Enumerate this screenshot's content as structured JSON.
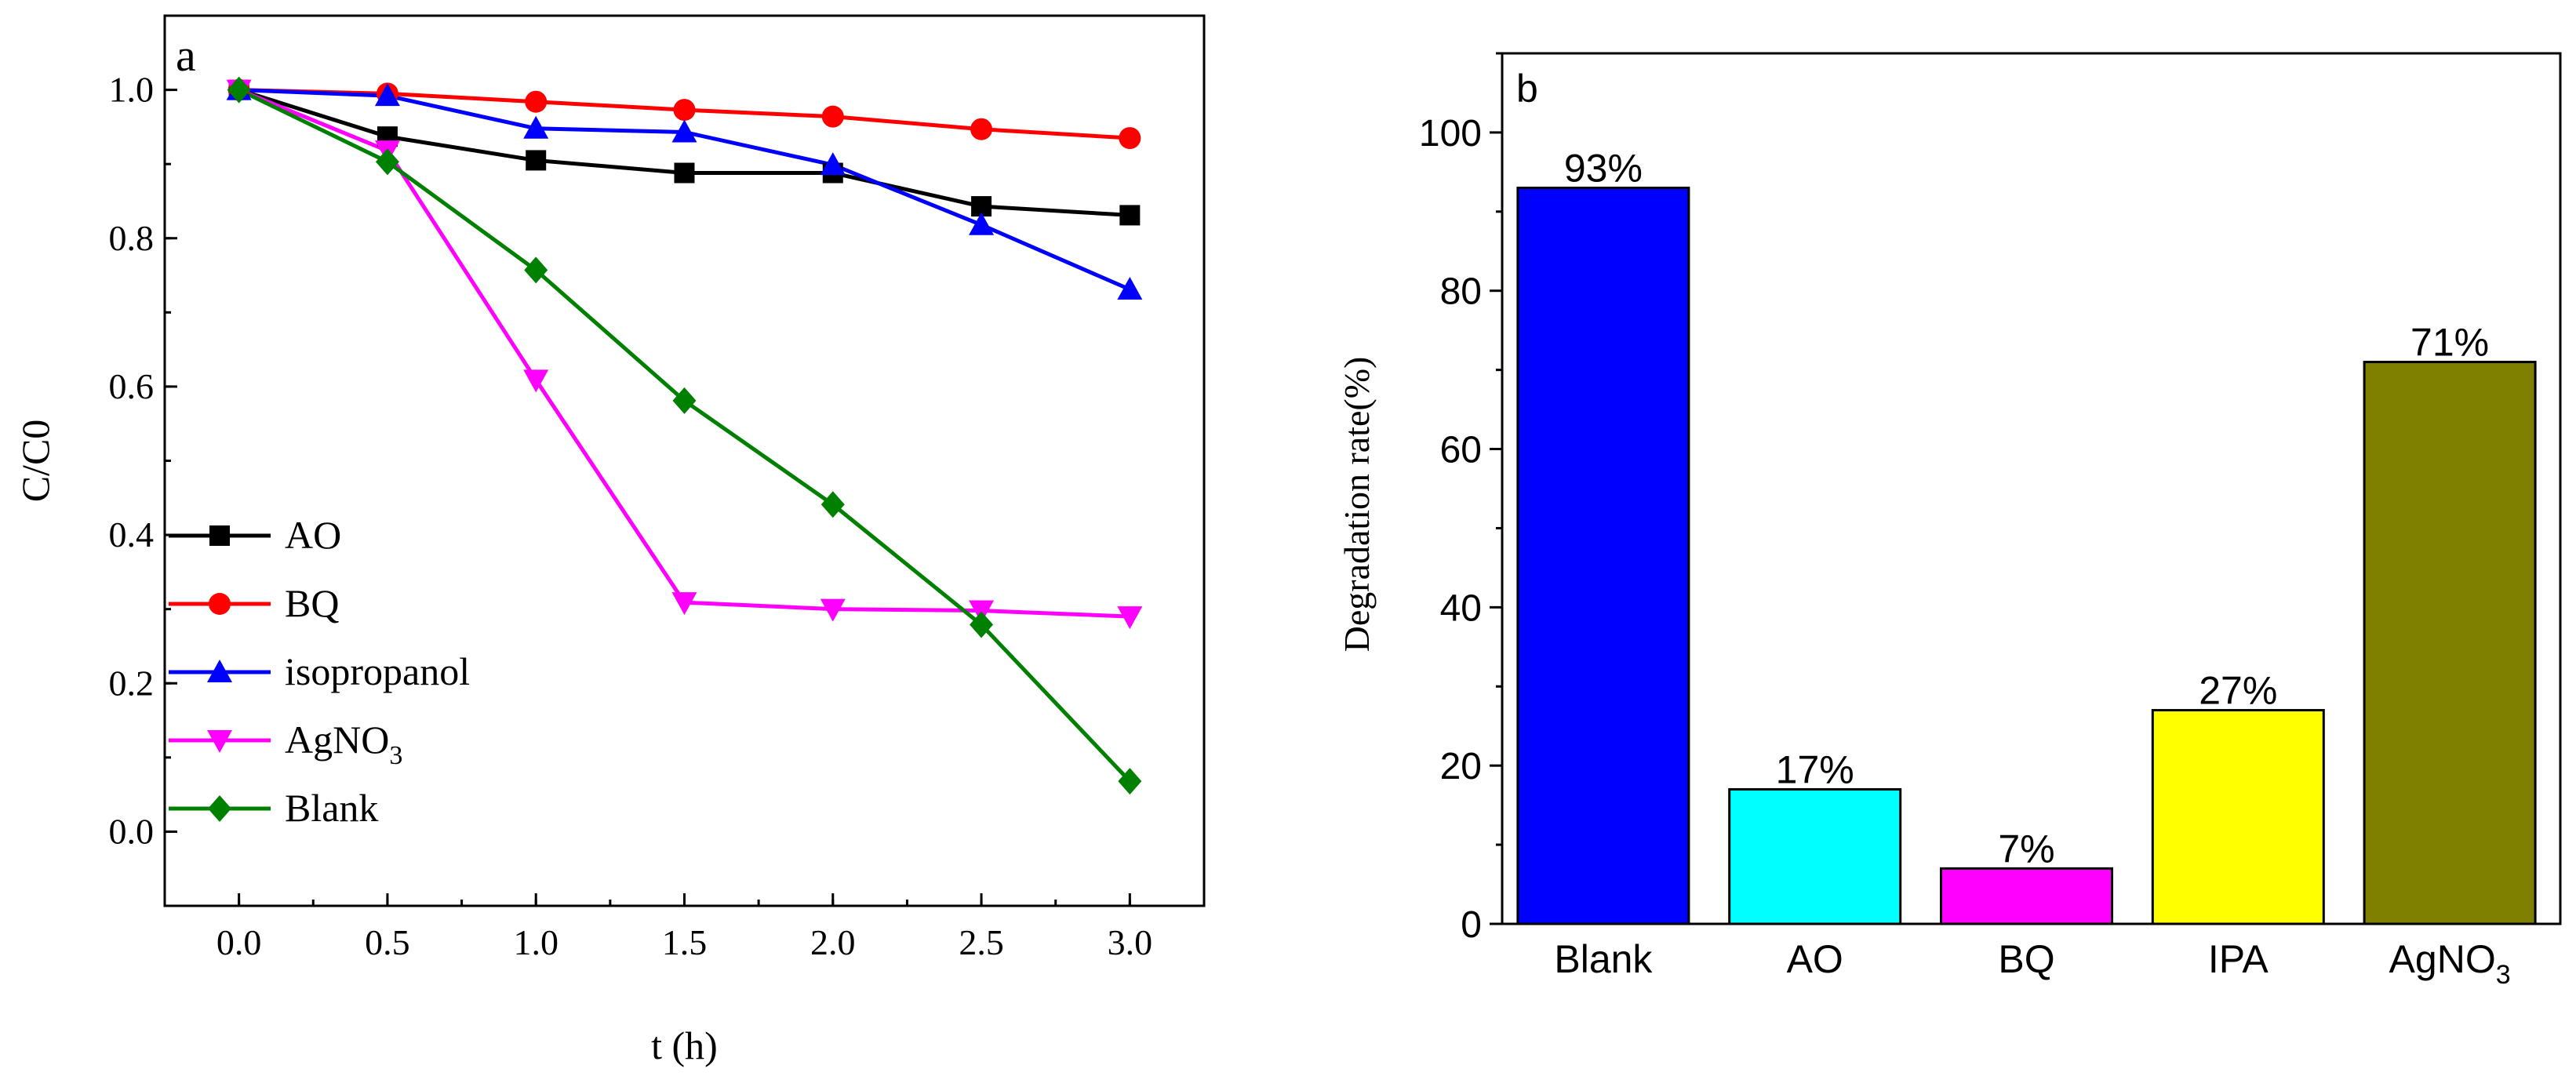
{
  "figure": {
    "panels": [
      {
        "panel_label": "a",
        "chart_data": {
          "type": "line",
          "title": "",
          "xlabel": "t (h)",
          "ylabel": "C/C0",
          "xlim": [
            -0.25,
            3.25
          ],
          "ylim": [
            -0.1,
            1.1
          ],
          "xticks": [
            0.0,
            0.5,
            1.0,
            1.5,
            2.0,
            2.5,
            3.0
          ],
          "xtick_labels": [
            "0.0",
            "0.5",
            "1.0",
            "1.5",
            "2.0",
            "2.5",
            "3.0"
          ],
          "yticks": [
            0.0,
            0.2,
            0.4,
            0.6,
            0.8,
            1.0
          ],
          "ytick_labels": [
            "0.0",
            "0.2",
            "0.4",
            "0.6",
            "0.8",
            "1.0"
          ],
          "grid": false,
          "legend_position": "left-middle",
          "x": [
            0.0,
            0.5,
            1.0,
            1.5,
            2.0,
            2.5,
            3.0
          ],
          "series": [
            {
              "name": "AO",
              "marker": "square",
              "color": "#000000",
              "values": [
                1.0,
                0.937,
                0.905,
                0.888,
                0.888,
                0.843,
                0.831
              ]
            },
            {
              "name": "BQ",
              "marker": "circle",
              "color": "#ff0000",
              "values": [
                1.0,
                0.995,
                0.984,
                0.973,
                0.964,
                0.947,
                0.935
              ]
            },
            {
              "name": "isopropanol",
              "marker": "triangle-up",
              "color": "#0000ff",
              "values": [
                1.0,
                0.992,
                0.948,
                0.943,
                0.899,
                0.818,
                0.731
              ]
            },
            {
              "name": "AgNO",
              "name_sub": "3",
              "marker": "triangle-down",
              "color": "#ff00ff",
              "values": [
                1.0,
                0.918,
                0.609,
                0.309,
                0.3,
                0.298,
                0.29
              ]
            },
            {
              "name": "Blank",
              "marker": "diamond",
              "color": "#008000",
              "values": [
                1.0,
                0.903,
                0.757,
                0.581,
                0.441,
                0.279,
                0.068
              ]
            }
          ]
        }
      },
      {
        "panel_label": "b",
        "chart_data": {
          "type": "bar",
          "title": "",
          "xlabel": "",
          "ylabel": "Degradation rate(%)",
          "ylim": [
            0,
            110
          ],
          "yticks": [
            0,
            20,
            40,
            60,
            80,
            100
          ],
          "ytick_labels": [
            "0",
            "20",
            "40",
            "60",
            "80",
            "100"
          ],
          "grid": false,
          "categories": [
            "Blank",
            "AO",
            "BQ",
            "IPA",
            "AgNO3"
          ],
          "category_labels": [
            {
              "text": "Blank",
              "sub": ""
            },
            {
              "text": "AO",
              "sub": ""
            },
            {
              "text": "BQ",
              "sub": ""
            },
            {
              "text": "IPA",
              "sub": ""
            },
            {
              "text": "AgNO",
              "sub": "3"
            }
          ],
          "values": [
            93,
            17,
            7,
            27,
            71
          ],
          "data_labels": [
            "93%",
            "17%",
            "7%",
            "27%",
            "71%"
          ],
          "colors": [
            "#0000ff",
            "#00ffff",
            "#ff00ff",
            "#ffff00",
            "#808000"
          ]
        }
      }
    ]
  }
}
